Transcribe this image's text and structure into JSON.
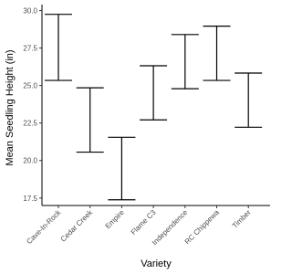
{
  "chart_data": {
    "type": "errorbar",
    "x_label": "Variety",
    "y_label": "Mean Seedling Height (in)",
    "categories": [
      "Cave-In-Rock",
      "Cedar Creek",
      "Empire",
      "Flame C3",
      "Independence",
      "RC Chippewa",
      "Timber"
    ],
    "low": [
      25.34,
      20.56,
      17.38,
      22.71,
      24.79,
      25.34,
      22.22
    ],
    "high": [
      29.75,
      24.85,
      21.55,
      26.32,
      28.4,
      28.96,
      25.83
    ],
    "color": "#000000",
    "ylim": [
      17.0,
      30.4
    ],
    "yticks": [
      17.5,
      {
        "value": 20,
        "label": "20.0"
      },
      22.5,
      {
        "value": 25,
        "label": "25.0"
      },
      27.5,
      {
        "value": 30,
        "label": "30.0"
      }
    ]
  }
}
